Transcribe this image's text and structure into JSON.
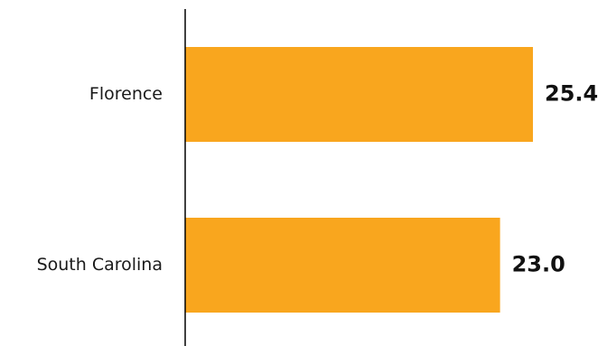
{
  "chart_data": {
    "type": "bar",
    "orientation": "horizontal",
    "categories": [
      "Florence",
      "South Carolina"
    ],
    "values": [
      25.4,
      23.0
    ],
    "value_labels": [
      "25.4",
      "23.0"
    ],
    "title": "",
    "xlabel": "",
    "ylabel": "",
    "xlim": [
      0,
      27
    ],
    "grid": false,
    "legend": "none",
    "colors": {
      "bar": "#F9A61E",
      "axis": "#000000",
      "text": "#1a1a1a"
    }
  }
}
